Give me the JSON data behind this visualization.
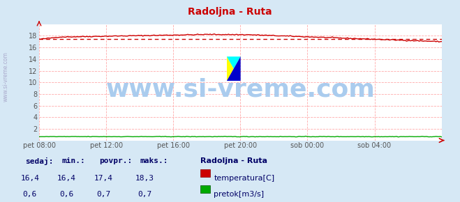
{
  "title": "Radoljna - Ruta",
  "title_color": "#cc0000",
  "bg_color": "#d6e8f5",
  "plot_bg_color": "#ffffff",
  "grid_color": "#ffaaaa",
  "grid_linestyle": "--",
  "x_labels": [
    "pet 08:00",
    "pet 12:00",
    "pet 16:00",
    "pet 20:00",
    "sob 00:00",
    "sob 04:00"
  ],
  "ylim": [
    0,
    20
  ],
  "yticks": [
    2,
    4,
    6,
    8,
    10,
    12,
    14,
    16,
    18
  ],
  "avg_line_value": 17.4,
  "avg_line_color": "#cc0000",
  "temp_color": "#cc0000",
  "flow_color": "#00aa00",
  "watermark_text": "www.si-vreme.com",
  "watermark_color": "#aaccee",
  "watermark_fontsize": 26,
  "sidebar_text": "www.si-vreme.com",
  "sidebar_color": "#aaaacc",
  "legend_title": "Radoljna - Ruta",
  "legend_title_color": "#000066",
  "legend_temp_label": "temperatura[C]",
  "legend_flow_label": "pretok[m3/s]",
  "stats_headers": [
    "sedaj:",
    "min.:",
    "povpr.:",
    "maks.:"
  ],
  "stats_temp": [
    "16,4",
    "16,4",
    "17,4",
    "18,3"
  ],
  "stats_flow": [
    "0,6",
    "0,6",
    "0,7",
    "0,7"
  ],
  "stats_color": "#000066",
  "logo_yellow": "#ffff00",
  "logo_cyan": "#00ffff",
  "logo_blue": "#0000cc"
}
